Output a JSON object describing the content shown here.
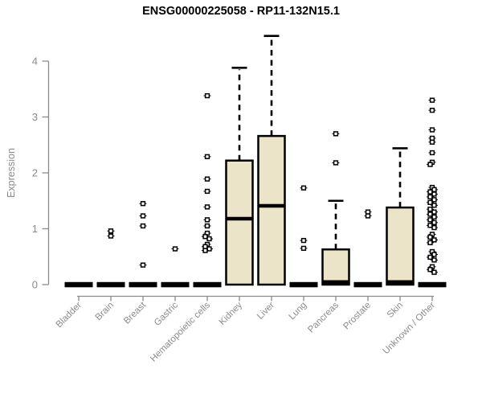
{
  "title": "ENSG00000225058 - RP11-132N15.1",
  "colors": {
    "box_fill": "#ece4c8",
    "box_stroke": "#000000",
    "median_color": "#000000",
    "whisker_color": "#000000",
    "outlier_color": "#000000",
    "axis_color": "#8b8b8b",
    "tick_label_color": "#8b8b8b",
    "title_color": "#000000"
  },
  "chart_data": {
    "type": "boxplot",
    "title": "ENSG00000225058 - RP11-132N15.1",
    "xlabel": "",
    "ylabel": "Expression",
    "ylim": [
      0,
      4.6
    ],
    "yticks": [
      0,
      1,
      2,
      3,
      4
    ],
    "grid": false,
    "legend": false,
    "categories": [
      "Bladder",
      "Brain",
      "Breast",
      "Gastric",
      "Hematopoietic cells",
      "Kidney",
      "Liver",
      "Lung",
      "Pancreas",
      "Prostate",
      "Skin",
      "Unknown / Other"
    ],
    "series": [
      {
        "label": "Bladder",
        "q1": 0,
        "median": 0,
        "q3": 0,
        "whisker_low": 0,
        "whisker_high": 0,
        "outliers": []
      },
      {
        "label": "Brain",
        "q1": 0,
        "median": 0,
        "q3": 0,
        "whisker_low": 0,
        "whisker_high": 0,
        "outliers": [
          0.96,
          0.87
        ]
      },
      {
        "label": "Breast",
        "q1": 0,
        "median": 0,
        "q3": 0,
        "whisker_low": 0,
        "whisker_high": 0,
        "outliers": [
          1.45,
          1.23,
          1.05,
          0.35
        ]
      },
      {
        "label": "Gastric",
        "q1": 0,
        "median": 0,
        "q3": 0,
        "whisker_low": 0,
        "whisker_high": 0,
        "outliers": [
          0.64
        ]
      },
      {
        "label": "Hematopoietic cells",
        "q1": 0,
        "median": 0,
        "q3": 0,
        "whisker_low": 0,
        "whisker_high": 0,
        "outliers": [
          3.38,
          2.29,
          1.89,
          1.67,
          1.39,
          1.16,
          1.05,
          0.92,
          0.86,
          0.82,
          0.72,
          0.68,
          0.64,
          0.61
        ]
      },
      {
        "label": "Kidney",
        "q1": 0,
        "median": 1.18,
        "q3": 2.22,
        "whisker_low": 0,
        "whisker_high": 3.88,
        "outliers": []
      },
      {
        "label": "Liver",
        "q1": 0,
        "median": 1.41,
        "q3": 2.66,
        "whisker_low": 0,
        "whisker_high": 4.45,
        "outliers": []
      },
      {
        "label": "Lung",
        "q1": 0,
        "median": 0,
        "q3": 0,
        "whisker_low": 0,
        "whisker_high": 0,
        "outliers": [
          1.73,
          0.79,
          0.65
        ]
      },
      {
        "label": "Pancreas",
        "q1": 0,
        "median": 0,
        "q3": 0.63,
        "whisker_low": 0,
        "whisker_high": 1.5,
        "outliers": [
          2.7,
          2.18
        ]
      },
      {
        "label": "Prostate",
        "q1": 0,
        "median": 0,
        "q3": 0,
        "whisker_low": 0,
        "whisker_high": 0,
        "outliers": [
          1.3,
          1.23
        ]
      },
      {
        "label": "Skin",
        "q1": 0,
        "median": 0,
        "q3": 1.38,
        "whisker_low": 0,
        "whisker_high": 2.44,
        "outliers": []
      },
      {
        "label": "Unknown / Other",
        "q1": 0,
        "median": 0,
        "q3": 0,
        "whisker_low": 0,
        "whisker_high": 0,
        "outliers": [
          3.3,
          3.12,
          2.77,
          2.62,
          2.55,
          2.36,
          2.19,
          2.15,
          1.74,
          1.7,
          1.66,
          1.62,
          1.57,
          1.52,
          1.47,
          1.42,
          1.35,
          1.3,
          1.26,
          1.21,
          1.16,
          1.11,
          1.06,
          1.02,
          0.9,
          0.85,
          0.8,
          0.75,
          0.59,
          0.54,
          0.49,
          0.44,
          0.32,
          0.27,
          0.22
        ]
      }
    ]
  }
}
